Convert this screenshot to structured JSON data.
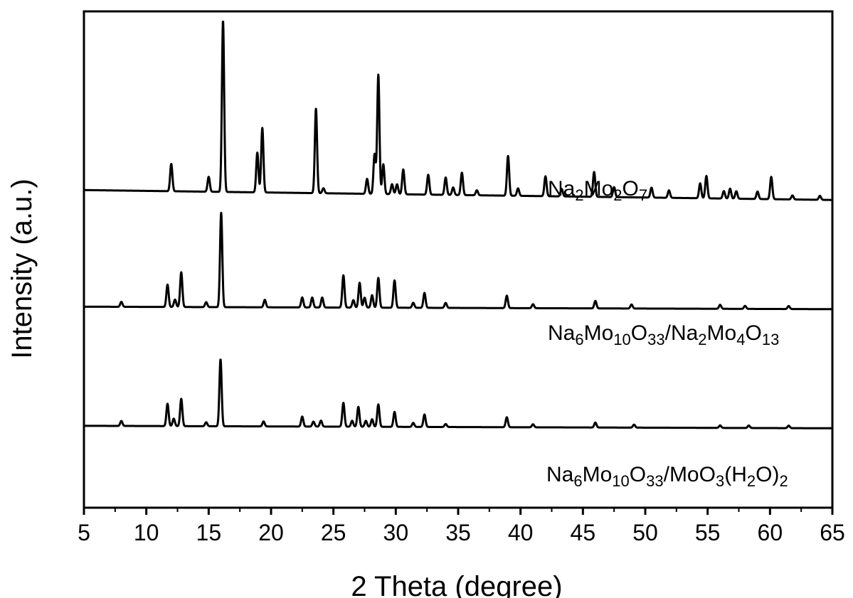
{
  "chart_data": {
    "type": "line",
    "xlabel": "2 Theta (degree)",
    "ylabel": "Intensity (a.u.)",
    "xlim": [
      5,
      65
    ],
    "x_ticks": [
      "5",
      "10",
      "15",
      "20",
      "25",
      "30",
      "35",
      "40",
      "45",
      "50",
      "55",
      "60",
      "65"
    ],
    "y_ticks_shown": false,
    "legend": "inline labels at right of each trace",
    "series": [
      {
        "name": "Na2Mo2O7",
        "label_parts": [
          [
            "Na",
            ""
          ],
          [
            "2",
            "sub"
          ],
          [
            "Mo",
            ""
          ],
          [
            "2",
            "sub"
          ],
          [
            "O",
            ""
          ],
          [
            "7",
            "sub"
          ]
        ],
        "baseline": 0.64,
        "end_level": 0.62,
        "peaks": [
          [
            12.0,
            0.055
          ],
          [
            15.0,
            0.03
          ],
          [
            16.15,
            0.345
          ],
          [
            18.9,
            0.08
          ],
          [
            19.3,
            0.13
          ],
          [
            23.6,
            0.17
          ],
          [
            24.2,
            0.01
          ],
          [
            27.7,
            0.03
          ],
          [
            28.3,
            0.08
          ],
          [
            28.6,
            0.24
          ],
          [
            29.0,
            0.06
          ],
          [
            29.7,
            0.02
          ],
          [
            30.1,
            0.02
          ],
          [
            30.6,
            0.05
          ],
          [
            32.6,
            0.04
          ],
          [
            34.0,
            0.035
          ],
          [
            34.6,
            0.015
          ],
          [
            35.3,
            0.045
          ],
          [
            36.5,
            0.01
          ],
          [
            39.0,
            0.08
          ],
          [
            39.8,
            0.015
          ],
          [
            42.0,
            0.04
          ],
          [
            43.3,
            0.015
          ],
          [
            45.9,
            0.05
          ],
          [
            47.5,
            0.02
          ],
          [
            50.5,
            0.02
          ],
          [
            51.9,
            0.015
          ],
          [
            54.4,
            0.03
          ],
          [
            54.9,
            0.045
          ],
          [
            56.3,
            0.015
          ],
          [
            56.8,
            0.02
          ],
          [
            57.3,
            0.015
          ],
          [
            59.0,
            0.015
          ],
          [
            60.1,
            0.045
          ],
          [
            61.8,
            0.008
          ],
          [
            64.0,
            0.008
          ]
        ]
      },
      {
        "name": "Na6Mo10O33/Na2Mo4O13",
        "label_parts": [
          [
            "Na",
            ""
          ],
          [
            "6",
            "sub"
          ],
          [
            "Mo",
            ""
          ],
          [
            "10",
            "sub"
          ],
          [
            "O",
            ""
          ],
          [
            "33",
            "sub"
          ],
          [
            "/Na",
            ""
          ],
          [
            "2",
            "sub"
          ],
          [
            "Mo",
            ""
          ],
          [
            "4",
            "sub"
          ],
          [
            "O",
            ""
          ],
          [
            "13",
            "sub"
          ]
        ],
        "baseline": 0.405,
        "end_level": 0.4,
        "peaks": [
          [
            8.0,
            0.01
          ],
          [
            11.7,
            0.045
          ],
          [
            12.3,
            0.015
          ],
          [
            12.8,
            0.07
          ],
          [
            14.8,
            0.01
          ],
          [
            16.0,
            0.19
          ],
          [
            19.5,
            0.015
          ],
          [
            22.5,
            0.02
          ],
          [
            23.3,
            0.02
          ],
          [
            24.1,
            0.02
          ],
          [
            25.8,
            0.065
          ],
          [
            26.6,
            0.015
          ],
          [
            27.1,
            0.05
          ],
          [
            27.5,
            0.02
          ],
          [
            28.1,
            0.025
          ],
          [
            28.6,
            0.06
          ],
          [
            29.9,
            0.055
          ],
          [
            31.4,
            0.01
          ],
          [
            32.3,
            0.03
          ],
          [
            34.0,
            0.01
          ],
          [
            38.9,
            0.025
          ],
          [
            41.0,
            0.008
          ],
          [
            46.0,
            0.015
          ],
          [
            48.9,
            0.008
          ],
          [
            56.0,
            0.008
          ],
          [
            58.0,
            0.006
          ],
          [
            61.5,
            0.006
          ]
        ]
      },
      {
        "name": "Na6Mo10O33/MoO3(H2O)2",
        "label_parts": [
          [
            "Na",
            ""
          ],
          [
            "6",
            "sub"
          ],
          [
            "Mo",
            ""
          ],
          [
            "10",
            "sub"
          ],
          [
            "O",
            ""
          ],
          [
            "33",
            "sub"
          ],
          [
            "/MoO",
            ""
          ],
          [
            "3",
            "sub"
          ],
          [
            "(H",
            ""
          ],
          [
            "2",
            "sub"
          ],
          [
            "O)",
            ""
          ],
          [
            "2",
            "sub"
          ]
        ],
        "baseline": 0.165,
        "end_level": 0.16,
        "peaks": [
          [
            8.0,
            0.01
          ],
          [
            11.7,
            0.045
          ],
          [
            12.2,
            0.015
          ],
          [
            12.8,
            0.055
          ],
          [
            14.8,
            0.008
          ],
          [
            15.95,
            0.135
          ],
          [
            19.4,
            0.01
          ],
          [
            22.5,
            0.02
          ],
          [
            23.4,
            0.01
          ],
          [
            24.0,
            0.012
          ],
          [
            25.8,
            0.048
          ],
          [
            26.5,
            0.012
          ],
          [
            27.0,
            0.04
          ],
          [
            27.6,
            0.012
          ],
          [
            28.1,
            0.015
          ],
          [
            28.6,
            0.045
          ],
          [
            29.9,
            0.03
          ],
          [
            31.4,
            0.008
          ],
          [
            32.3,
            0.025
          ],
          [
            34.0,
            0.006
          ],
          [
            38.9,
            0.02
          ],
          [
            41.0,
            0.006
          ],
          [
            46.0,
            0.01
          ],
          [
            49.1,
            0.006
          ],
          [
            56.0,
            0.005
          ],
          [
            58.3,
            0.005
          ],
          [
            61.5,
            0.005
          ]
        ]
      }
    ]
  }
}
